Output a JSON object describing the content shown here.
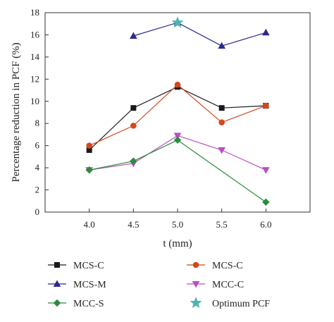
{
  "chart_data": {
    "type": "line",
    "xlabel": "t (mm)",
    "ylabel": "Percentage reduction in PCF (%)",
    "xlim": [
      3.5,
      6.5
    ],
    "ylim": [
      0,
      18
    ],
    "xticks": [
      "4.0",
      "4.5",
      "5.0",
      "5.5",
      "6.0"
    ],
    "yticks": [
      "0",
      "2",
      "4",
      "6",
      "8",
      "10",
      "12",
      "14",
      "16",
      "18"
    ],
    "grid": false,
    "legend_position": "bottom",
    "series": [
      {
        "name": "MCS-C",
        "color": "#1a1a1a",
        "marker": "square",
        "x": [
          4.0,
          4.5,
          5.0,
          5.5,
          6.0
        ],
        "y": [
          5.6,
          9.4,
          11.3,
          9.4,
          9.6
        ]
      },
      {
        "name": "MCS-C",
        "color": "#d4481e",
        "marker": "circle",
        "x": [
          4.0,
          4.5,
          5.0,
          5.5,
          6.0
        ],
        "y": [
          6.0,
          7.8,
          11.5,
          8.1,
          9.6
        ]
      },
      {
        "name": "MCS-M",
        "color": "#2c2a8c",
        "marker": "triangle-up",
        "x": [
          4.5,
          5.0,
          5.5,
          6.0
        ],
        "y": [
          15.9,
          17.1,
          15.0,
          16.2
        ]
      },
      {
        "name": "MCC-C",
        "color": "#b84fc0",
        "marker": "triangle-down",
        "x": [
          4.0,
          4.5,
          5.0,
          5.5,
          6.0
        ],
        "y": [
          3.8,
          4.4,
          6.9,
          5.6,
          3.8
        ]
      },
      {
        "name": "MCC-S",
        "color": "#2e8b3e",
        "marker": "diamond",
        "x": [
          4.0,
          4.5,
          5.0,
          5.5,
          6.0
        ],
        "y": [
          3.8,
          4.6,
          6.5,
          null,
          0.9
        ]
      },
      {
        "name": "Optimum PCF",
        "color": "#4fb3b3",
        "marker": "star",
        "x": [
          5.0
        ],
        "y": [
          17.1
        ]
      }
    ]
  }
}
